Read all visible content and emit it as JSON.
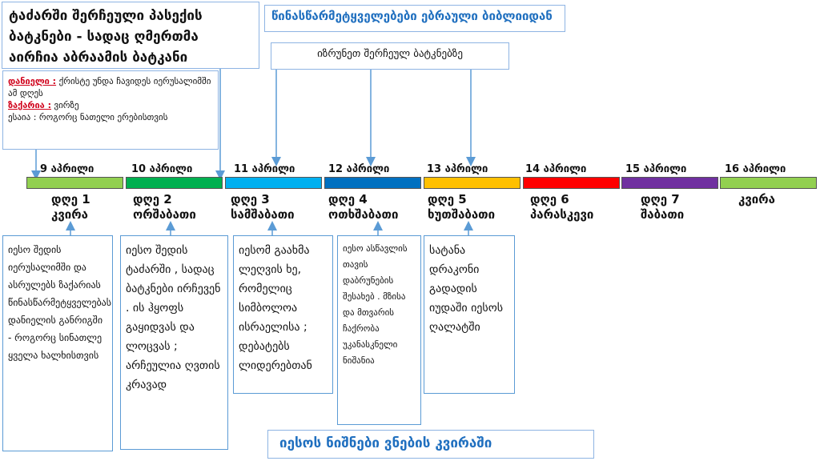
{
  "title": "ტაძარში შერჩეული პასექის ბატკნები - სადაც ღმერთმა აირჩია აბრაამის ბატკანი",
  "header": "წინასწარმეტყველებები  ებრაული ბიბლიიდან",
  "return_note": "იზრუნეთ შერჩეულ ბატკნებზე",
  "note": {
    "daniel_label": "დანიელი :",
    "daniel_text": " ქრისტე უნდა ჩავიდეს იერუსალიმში  ამ დღეს",
    "zechariah_label": "ზაქარია :",
    "zechariah_text": " ვირზე",
    "isaiah_text": "ესაია : როგორც ნათელი ერებისთვის"
  },
  "bottom_title": "იესოს ნიშნები ვნების კვირაში",
  "colors": {
    "box_border": "#5b9bd5",
    "heading_blue": "#1f6fbf",
    "highlight_red": "#d0021b"
  },
  "days": [
    {
      "date": "9 აპრილი",
      "day_num": "დღე 1",
      "weekday": "კვირა",
      "color": "#92d050"
    },
    {
      "date": "10 აპრილი",
      "day_num": "დღე 2",
      "weekday": "ორშაბათი",
      "color": "#00b050"
    },
    {
      "date": "11 აპრილი",
      "day_num": "დღე 3",
      "weekday": "სამშაბათი",
      "color": "#00b0f0"
    },
    {
      "date": "12 აპრილი",
      "day_num": "დღე 4",
      "weekday": "ოთხშაბათი",
      "color": "#0070c0"
    },
    {
      "date": "13 აპრილი",
      "day_num": "დღე 5",
      "weekday": "ხუთშაბათი",
      "color": "#ffc000"
    },
    {
      "date": "14 აპრილი",
      "day_num": "დღე 6",
      "weekday": "პარასკევი",
      "color": "#ff0000"
    },
    {
      "date": "15 აპრილი",
      "day_num": "დღე 7",
      "weekday": "შაბათი",
      "color": "#7030a0"
    },
    {
      "date": "16 აპრილი",
      "day_num": "",
      "weekday": "კვირა",
      "color": "#92d050"
    }
  ],
  "descriptions": [
    "იესო შედის იერუსალიმში და ასრულებს ზაქარიას წინასწარმეტყველებას დანიელის განრიგში - როგორც სინათლე ყველა ხალხისთვის",
    "იესო შედის ტაძარში , სადაც ბატკნები ირჩევენ . ის ჰყოფს გაყიდვას და ლოცვას ; არჩეულია ღვთის კრავად",
    "იესომ გაახმა ლეღვის ხე, რომელიც სიმბოლოა ისრაელისა ; დებატებს ლიდერებთან",
    "იესო ასწავლის თავის დაბრუნების შესახებ . მზისა და მთვარის ჩაქრობა უკანასკნელი ნიშანია",
    "სატანა დრაკონი გადადის იუდაში იესოს ღალატში"
  ]
}
